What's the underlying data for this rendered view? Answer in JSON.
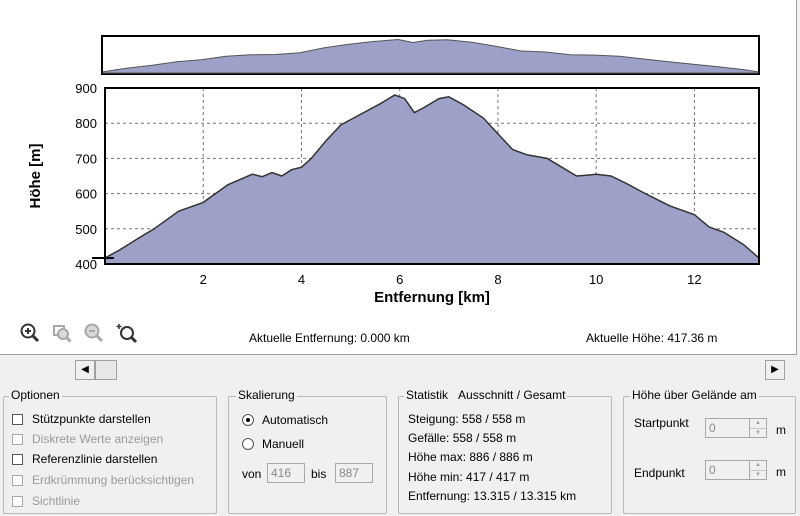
{
  "chart_data": {
    "type": "area",
    "xlabel": "Entfernung [km]",
    "ylabel": "Höhe [m]",
    "xlim": [
      0,
      13.315
    ],
    "ylim": [
      400,
      900
    ],
    "xticks": [
      2,
      4,
      6,
      8,
      10,
      12
    ],
    "yticks": [
      400,
      500,
      600,
      700,
      800,
      900
    ],
    "grid": true,
    "fill_color": "#9da1c8",
    "line_color": "#333333",
    "x": [
      0,
      0.3,
      0.7,
      1.0,
      1.5,
      2.0,
      2.5,
      3.0,
      3.2,
      3.4,
      3.6,
      3.8,
      4.0,
      4.2,
      4.5,
      4.8,
      5.2,
      5.6,
      5.9,
      6.1,
      6.3,
      6.5,
      6.8,
      7.0,
      7.3,
      7.7,
      8.0,
      8.3,
      8.6,
      9.0,
      9.3,
      9.6,
      9.8,
      10.0,
      10.3,
      10.6,
      11.0,
      11.5,
      12.0,
      12.3,
      12.6,
      13.0,
      13.315
    ],
    "values": [
      417,
      440,
      475,
      500,
      550,
      575,
      625,
      655,
      648,
      660,
      650,
      668,
      675,
      700,
      750,
      795,
      825,
      855,
      880,
      870,
      830,
      845,
      870,
      875,
      852,
      815,
      770,
      725,
      710,
      700,
      675,
      650,
      652,
      655,
      650,
      630,
      600,
      565,
      540,
      505,
      490,
      455,
      417
    ],
    "overview": {
      "x": [
        0,
        0.5,
        1.0,
        1.5,
        2.0,
        2.5,
        3.0,
        3.5,
        4.0,
        4.5,
        5.0,
        5.5,
        6.0,
        6.3,
        6.6,
        7.0,
        7.5,
        8.0,
        8.5,
        9.0,
        9.5,
        10.0,
        10.5,
        11.0,
        11.5,
        12.0,
        12.5,
        13.0,
        13.315
      ],
      "values": [
        417,
        470,
        510,
        560,
        590,
        640,
        660,
        665,
        690,
        760,
        810,
        850,
        878,
        835,
        868,
        875,
        840,
        780,
        715,
        700,
        660,
        655,
        640,
        600,
        560,
        525,
        490,
        450,
        417
      ]
    }
  },
  "status": {
    "distance": "Aktuelle Entfernung: 0.000 km",
    "height": "Aktuelle Höhe: 417.36 m"
  },
  "toolbar": {
    "zoom_in_icon": "zoom-in-icon",
    "zoom_region_icon": "zoom-region-icon",
    "zoom_out_icon": "zoom-out-icon",
    "zoom_fit_icon": "zoom-fit-icon"
  },
  "scrollbar": {
    "left_arrow": "◀",
    "right_arrow": "▶"
  },
  "options": {
    "title": "Optionen",
    "items": [
      {
        "label": "Stützpunkte darstellen",
        "enabled": true
      },
      {
        "label": "Diskrete Werte anzeigen",
        "enabled": false
      },
      {
        "label": "Referenzlinie darstellen",
        "enabled": true
      },
      {
        "label": "Erdkrümmung berücksichtigen",
        "enabled": false
      },
      {
        "label": "Sichtlinie",
        "enabled": false
      }
    ]
  },
  "scaling": {
    "title": "Skalierung",
    "auto_label": "Automatisch",
    "manual_label": "Manuell",
    "from_label": "von",
    "from_value": "416",
    "to_label": "bis",
    "to_value": "887"
  },
  "stats": {
    "title": "Statistik",
    "subtitle": "Ausschnitt / Gesamt",
    "lines": [
      "Steigung: 558 / 558 m",
      "Gefälle: 558 / 558 m",
      "Höhe max: 886 / 886 m",
      "Höhe min: 417 / 417 m",
      "Entfernung: 13.315 / 13.315 km"
    ]
  },
  "terrain": {
    "title": "Höhe über Gelände am",
    "start_label": "Startpunkt",
    "start_value": "0",
    "end_label": "Endpunkt",
    "end_value": "0",
    "unit": "m"
  }
}
